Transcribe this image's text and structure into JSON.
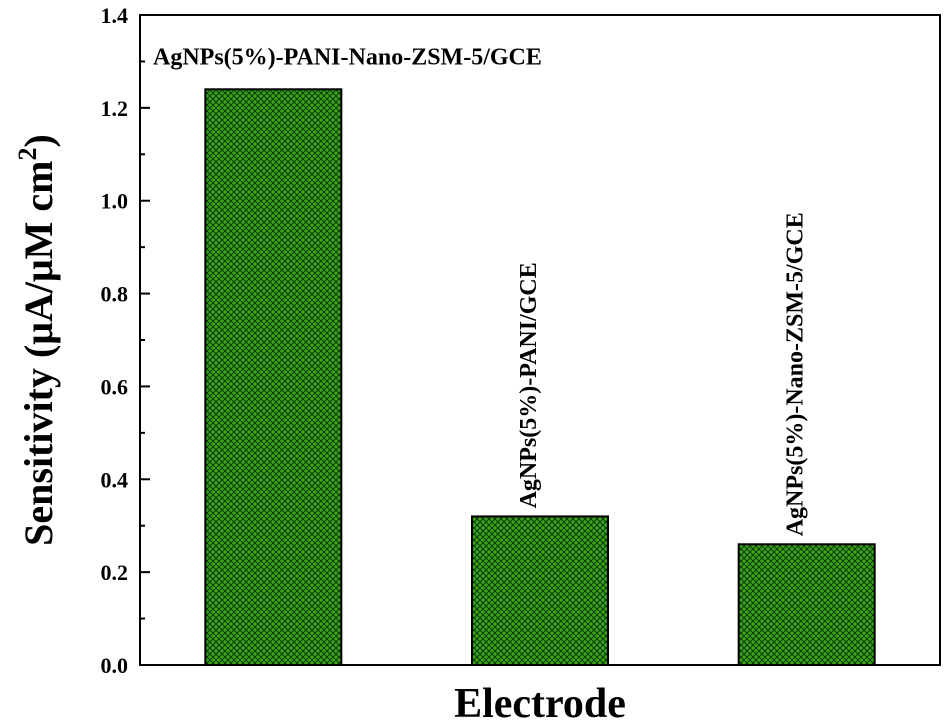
{
  "chart_data": {
    "type": "bar",
    "categories": [
      "AgNPs(5%)-PANI-Nano-ZSM-5/GCE",
      "AgNPs(5%)-PANI/GCE",
      "AgNPs(5%)-Nano-ZSM-5/GCE"
    ],
    "values": [
      1.24,
      0.32,
      0.26
    ],
    "xlabel": "Electrode",
    "ylabel": "Sensitivity (μA/μM cm",
    "ylabel_sup": "2",
    "ylabel_close": ")",
    "ylim": [
      0.0,
      1.4
    ],
    "yticks": [
      "0.0",
      "0.2",
      "0.4",
      "0.6",
      "0.8",
      "1.0",
      "1.2",
      "1.4"
    ],
    "grid": false,
    "legend": "none",
    "bar_color": "#3aa31c",
    "hatch": "crosshatch",
    "label_orientation": [
      "horizontal",
      "vertical",
      "vertical"
    ]
  }
}
